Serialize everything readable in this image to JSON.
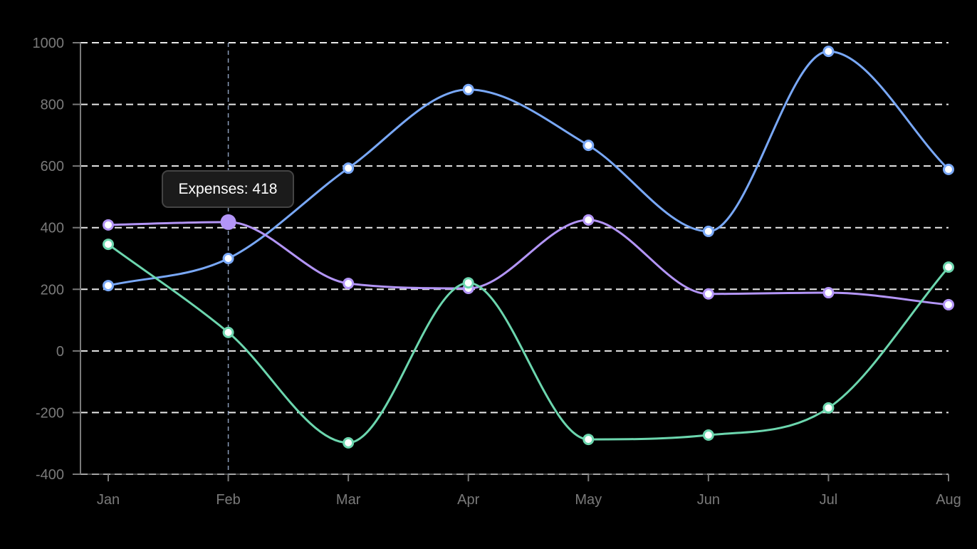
{
  "chart_data": {
    "type": "line",
    "title": "",
    "xlabel": "",
    "ylabel": "",
    "categories": [
      "Jan",
      "Feb",
      "Mar",
      "Apr",
      "May",
      "Jun",
      "Jul",
      "Aug"
    ],
    "ylim": [
      -400,
      1000
    ],
    "yticks": [
      -400,
      -200,
      0,
      200,
      400,
      600,
      800,
      1000
    ],
    "grid": true,
    "legend": "none",
    "smooth": true,
    "series": [
      {
        "name": "",
        "color": "#79a8f7",
        "values": [
          212,
          300,
          593,
          848,
          667,
          388,
          972,
          589
        ]
      },
      {
        "name": "Expenses",
        "color": "#b395f7",
        "values": [
          409,
          418,
          219,
          203,
          425,
          185,
          189,
          150
        ]
      },
      {
        "name": "",
        "color": "#6cd6ae",
        "values": [
          346,
          60,
          -298,
          221,
          -287,
          -273,
          -185,
          272
        ]
      }
    ],
    "hover": {
      "series_index": 1,
      "category_index": 1
    }
  },
  "tooltip": {
    "text": "Expenses: 418"
  },
  "colors": {
    "axis": "#7a7a7a",
    "grid": "#e8e8e8",
    "crosshair": "#8a9bb8",
    "background": "#000000"
  }
}
